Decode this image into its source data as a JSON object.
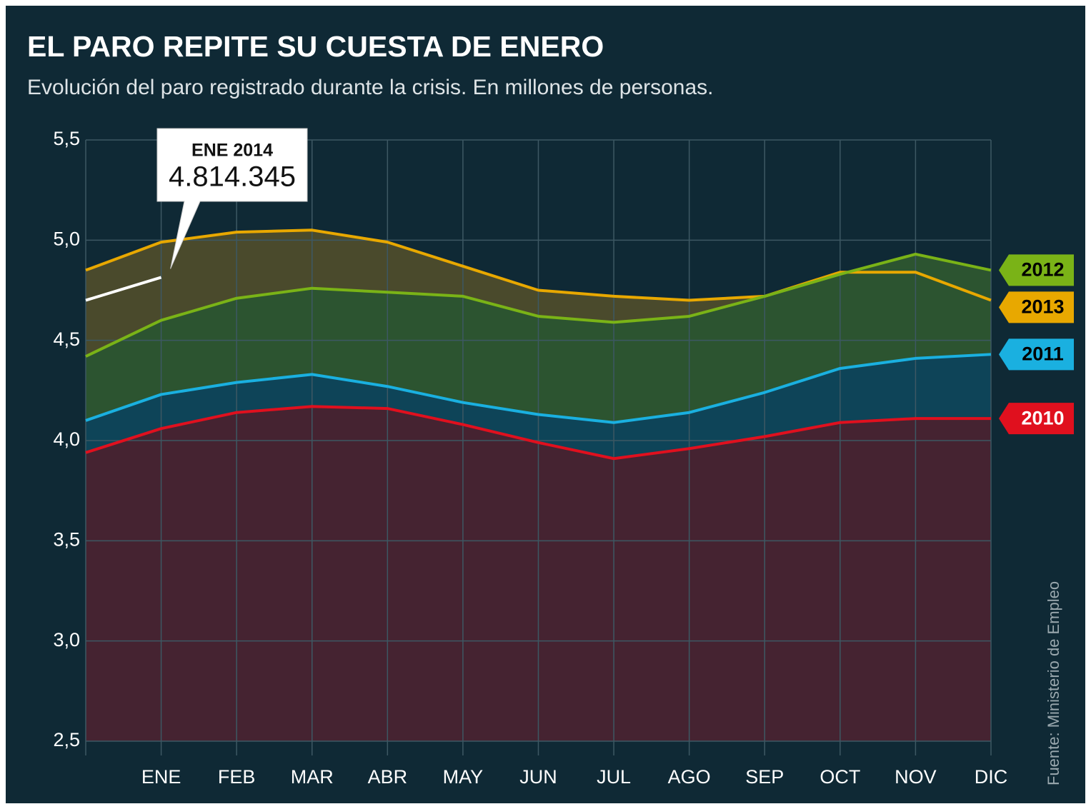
{
  "chart_data": {
    "type": "area",
    "title": "EL PARO REPITE SU CUESTA DE ENERO",
    "subtitle": "Evolución del paro registrado durante la crisis. En millones de personas.",
    "source": "Fuente: Ministerio de Empleo",
    "annotation": "ENE 2014",
    "categories": [
      null,
      "ENE",
      "FEB",
      "MAR",
      "ABR",
      "MAY",
      "JUN",
      "JUL",
      "AGO",
      "SEP",
      "OCT",
      "NOV",
      "DIC"
    ],
    "ylim": [
      2.5,
      5.5
    ],
    "yticks": [
      {
        "value": 2.5,
        "label": "2,5"
      },
      {
        "value": 3.0,
        "label": "3,0"
      },
      {
        "value": 3.5,
        "label": "3,5"
      },
      {
        "value": 4.0,
        "label": "4,0"
      },
      {
        "value": 4.5,
        "label": "4,5"
      },
      {
        "value": 5.0,
        "label": "5,0"
      },
      {
        "value": 5.5,
        "label": "5,5"
      }
    ],
    "grid": true,
    "legend": "right",
    "series": [
      {
        "name": "2013",
        "color": "#e8a800",
        "area_color": "#4a4a2c",
        "label_text_color": "#000000",
        "values": [
          4.85,
          4.99,
          5.04,
          5.05,
          4.99,
          4.87,
          4.75,
          4.72,
          4.7,
          4.72,
          4.84,
          4.84,
          4.7
        ]
      },
      {
        "name": "2012",
        "color": "#7ab317",
        "area_color": "#2c5430",
        "label_text_color": "#000000",
        "values": [
          4.42,
          4.6,
          4.71,
          4.76,
          4.74,
          4.72,
          4.62,
          4.59,
          4.62,
          4.72,
          4.83,
          4.93,
          4.85
        ]
      },
      {
        "name": "2011",
        "color": "#1ab0e0",
        "area_color": "#0e4458",
        "label_text_color": "#000000",
        "values": [
          4.1,
          4.23,
          4.29,
          4.33,
          4.27,
          4.19,
          4.13,
          4.09,
          4.14,
          4.24,
          4.36,
          4.41,
          4.43
        ]
      },
      {
        "name": "2010",
        "color": "#e0101e",
        "area_color": "#452331",
        "label_text_color": "#ffffff",
        "values": [
          3.94,
          4.06,
          4.14,
          4.17,
          4.16,
          4.08,
          3.99,
          3.91,
          3.96,
          4.02,
          4.09,
          4.11,
          4.11
        ]
      },
      {
        "color": "#ffffff",
        "values": [
          4.7,
          4.814345,
          null,
          null,
          null,
          null,
          null,
          null,
          null,
          null,
          null,
          null,
          null
        ],
        "value_labels": [
          null,
          "4.814.345",
          null,
          null,
          null,
          null,
          null,
          null,
          null,
          null,
          null,
          null,
          null
        ]
      }
    ]
  }
}
